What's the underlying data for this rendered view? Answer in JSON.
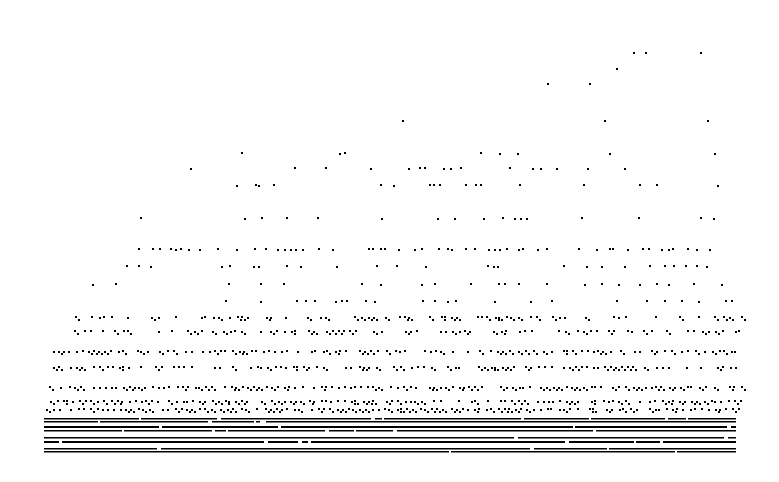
{
  "colors": {
    "background": "#ffffff",
    "ink": "#000000"
  },
  "pattern": {
    "description_type": "sparse-to-dense horizontal dot bands",
    "band_count": 17
  }
}
